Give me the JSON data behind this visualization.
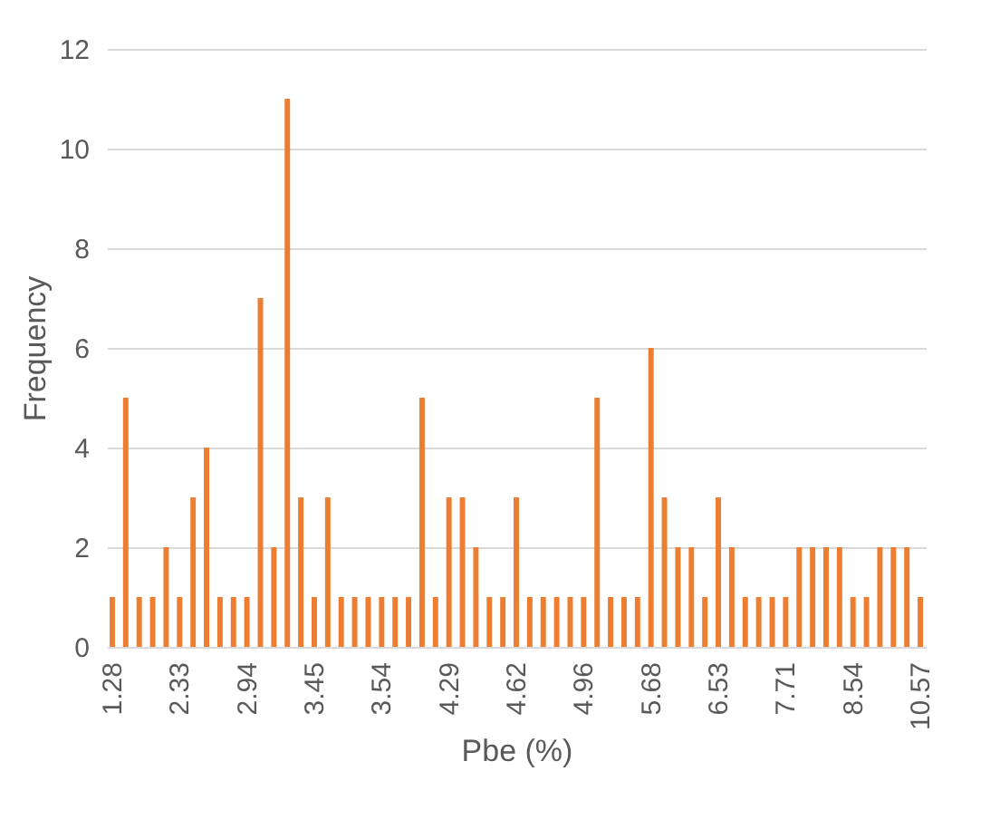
{
  "chart_data": {
    "type": "bar",
    "xlabel": "Pbe (%)",
    "ylabel": "Frequency",
    "categories": [
      "1.28",
      null,
      null,
      null,
      null,
      "2.33",
      null,
      null,
      null,
      null,
      "2.94",
      null,
      null,
      null,
      null,
      "3.45",
      null,
      null,
      null,
      null,
      "3.54",
      null,
      null,
      null,
      null,
      "4.29",
      null,
      null,
      null,
      null,
      "4.62",
      null,
      null,
      null,
      null,
      "4.96",
      null,
      null,
      null,
      null,
      "5.68",
      null,
      null,
      null,
      null,
      "6.53",
      null,
      null,
      null,
      null,
      "7.71",
      null,
      null,
      null,
      null,
      "8.54",
      null,
      null,
      null,
      null,
      "10.57"
    ],
    "values": [
      1,
      5,
      1,
      1,
      2,
      1,
      3,
      4,
      1,
      1,
      1,
      7,
      2,
      11,
      3,
      1,
      3,
      1,
      1,
      1,
      1,
      1,
      1,
      5,
      1,
      3,
      3,
      2,
      1,
      1,
      3,
      1,
      1,
      1,
      1,
      1,
      5,
      1,
      1,
      1,
      6,
      3,
      2,
      2,
      1,
      3,
      2,
      1,
      1,
      1,
      1,
      2,
      2,
      2,
      2,
      1,
      1,
      2,
      2,
      2,
      1
    ],
    "color": "#ed7d31",
    "ylim": [
      0,
      12
    ],
    "yticks": [
      0,
      2,
      4,
      6,
      8,
      10,
      12
    ],
    "grid": "y"
  }
}
